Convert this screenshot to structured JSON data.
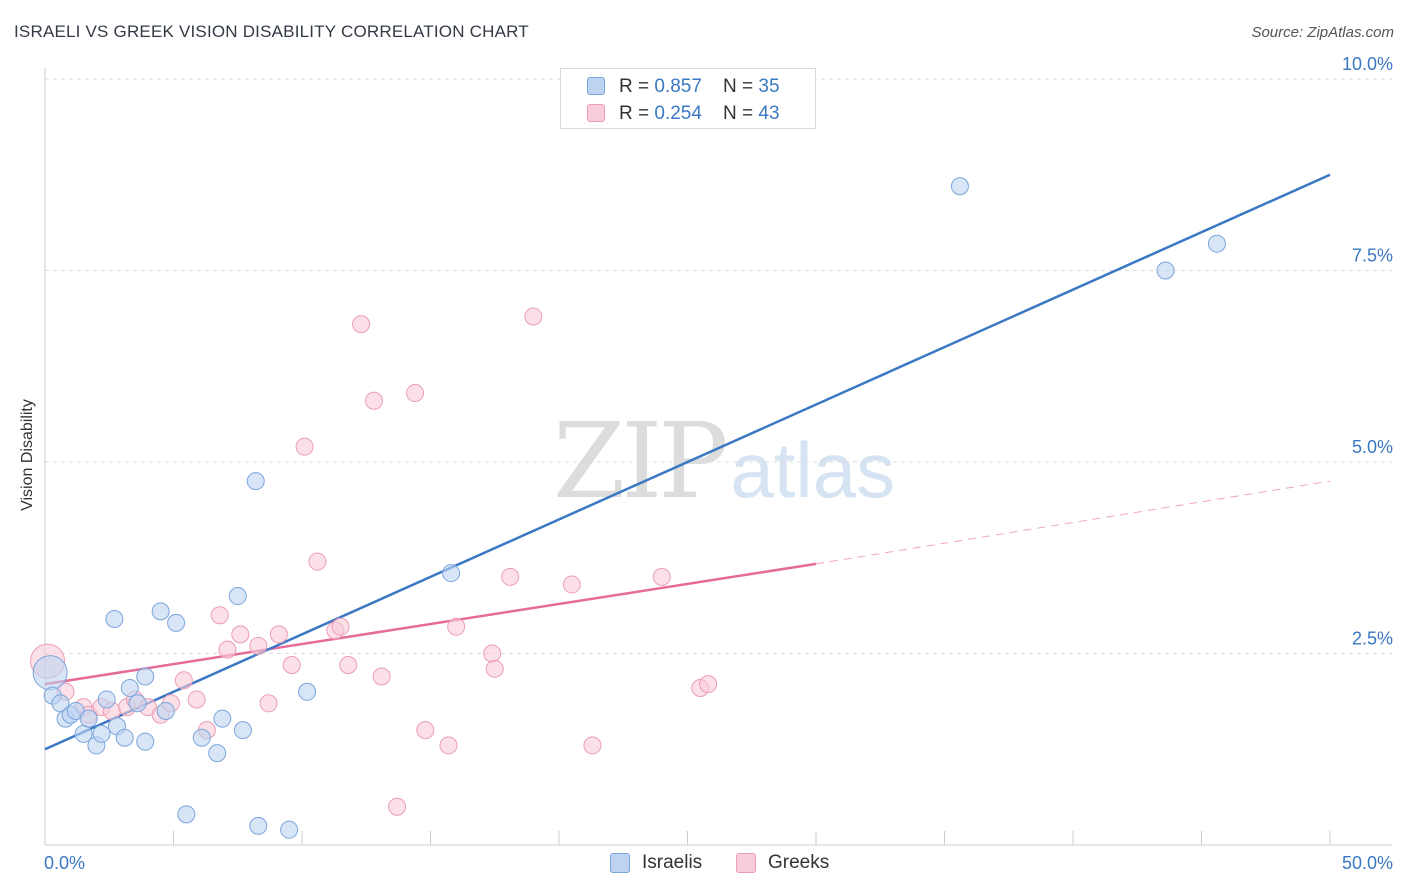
{
  "title": "ISRAELI VS GREEK VISION DISABILITY CORRELATION CHART",
  "source": "Source: ZipAtlas.com",
  "watermark": {
    "zip": "ZIP",
    "atlas": "atlas"
  },
  "colors": {
    "blue": "#3a78c4",
    "blue_fill": "#bcd4f2",
    "blue_stroke": "#7ba6dc",
    "pink": "#e66b97",
    "pink_fill": "#f9ccd9",
    "pink_stroke": "#ec9db6"
  },
  "legend_top": [
    {
      "r_label": "R = ",
      "r_value": "0.857",
      "n_label": "N = ",
      "n_value": "35"
    },
    {
      "r_label": "R = ",
      "r_value": "0.254",
      "n_label": "N = ",
      "n_value": "43"
    }
  ],
  "legend_bottom": [
    "Israelis",
    "Greeks"
  ],
  "chart_data": {
    "type": "scatter",
    "title": "ISRAELI VS GREEK VISION DISABILITY CORRELATION CHART",
    "xlabel": "",
    "ylabel": "Vision Disability",
    "xlim": [
      0,
      50
    ],
    "ylim": [
      0,
      10.25
    ],
    "x_tick_labels": [
      "0.0%",
      "50.0%"
    ],
    "y_ticks": [
      2.5,
      5.0,
      7.5,
      10.0
    ],
    "y_tick_labels": [
      "2.5%",
      "5.0%",
      "7.5%",
      "10.0%"
    ],
    "grid": "horizontal dashed",
    "legend_position": "top-center and bottom-center",
    "series": [
      {
        "name": "Israelis",
        "r": 0.857,
        "n": 35,
        "trend": {
          "x": [
            0,
            50
          ],
          "y": [
            1.25,
            8.75
          ]
        },
        "points": [
          {
            "x": 0.2,
            "y": 2.25,
            "big": true
          },
          {
            "x": 0.3,
            "y": 1.95
          },
          {
            "x": 0.6,
            "y": 1.85
          },
          {
            "x": 0.8,
            "y": 1.65
          },
          {
            "x": 1.0,
            "y": 1.7
          },
          {
            "x": 1.2,
            "y": 1.75
          },
          {
            "x": 1.5,
            "y": 1.45
          },
          {
            "x": 1.7,
            "y": 1.65
          },
          {
            "x": 2.0,
            "y": 1.3
          },
          {
            "x": 2.2,
            "y": 1.45
          },
          {
            "x": 2.4,
            "y": 1.9
          },
          {
            "x": 2.7,
            "y": 2.95
          },
          {
            "x": 2.8,
            "y": 1.55
          },
          {
            "x": 3.1,
            "y": 1.4
          },
          {
            "x": 3.3,
            "y": 2.05
          },
          {
            "x": 3.6,
            "y": 1.85
          },
          {
            "x": 3.9,
            "y": 1.35
          },
          {
            "x": 3.9,
            "y": 2.2
          },
          {
            "x": 4.5,
            "y": 3.05
          },
          {
            "x": 4.7,
            "y": 1.75
          },
          {
            "x": 5.1,
            "y": 2.9
          },
          {
            "x": 5.5,
            "y": 0.4
          },
          {
            "x": 6.1,
            "y": 1.4
          },
          {
            "x": 6.7,
            "y": 1.2
          },
          {
            "x": 6.9,
            "y": 1.65
          },
          {
            "x": 7.5,
            "y": 3.25
          },
          {
            "x": 7.7,
            "y": 1.5
          },
          {
            "x": 8.2,
            "y": 4.75
          },
          {
            "x": 8.3,
            "y": 0.25
          },
          {
            "x": 9.5,
            "y": 0.2
          },
          {
            "x": 10.2,
            "y": 2.0
          },
          {
            "x": 15.8,
            "y": 3.55
          },
          {
            "x": 35.6,
            "y": 8.6
          },
          {
            "x": 43.6,
            "y": 7.5
          },
          {
            "x": 45.6,
            "y": 7.85
          }
        ]
      },
      {
        "name": "Greeks",
        "r": 0.254,
        "n": 43,
        "trend": {
          "x": [
            0,
            30
          ],
          "y": [
            2.1,
            3.67
          ]
        },
        "trend_extension": {
          "x": [
            30,
            50
          ],
          "y": [
            3.67,
            4.75
          ]
        },
        "points": [
          {
            "x": 0.1,
            "y": 2.4,
            "big": true
          },
          {
            "x": 0.8,
            "y": 2.0
          },
          {
            "x": 1.5,
            "y": 1.8
          },
          {
            "x": 1.7,
            "y": 1.7
          },
          {
            "x": 2.2,
            "y": 1.8
          },
          {
            "x": 2.6,
            "y": 1.75
          },
          {
            "x": 3.2,
            "y": 1.8
          },
          {
            "x": 3.5,
            "y": 1.9
          },
          {
            "x": 4.0,
            "y": 1.8
          },
          {
            "x": 4.5,
            "y": 1.7
          },
          {
            "x": 4.9,
            "y": 1.85
          },
          {
            "x": 5.4,
            "y": 2.15
          },
          {
            "x": 5.9,
            "y": 1.9
          },
          {
            "x": 6.3,
            "y": 1.5
          },
          {
            "x": 6.8,
            "y": 3.0
          },
          {
            "x": 7.1,
            "y": 2.55
          },
          {
            "x": 7.6,
            "y": 2.75
          },
          {
            "x": 8.3,
            "y": 2.6
          },
          {
            "x": 8.7,
            "y": 1.85
          },
          {
            "x": 9.1,
            "y": 2.75
          },
          {
            "x": 9.6,
            "y": 2.35
          },
          {
            "x": 10.1,
            "y": 5.2
          },
          {
            "x": 10.6,
            "y": 3.7
          },
          {
            "x": 11.3,
            "y": 2.8
          },
          {
            "x": 11.5,
            "y": 2.85
          },
          {
            "x": 11.8,
            "y": 2.35
          },
          {
            "x": 12.3,
            "y": 6.8
          },
          {
            "x": 12.8,
            "y": 5.8
          },
          {
            "x": 13.1,
            "y": 2.2
          },
          {
            "x": 13.7,
            "y": 0.5
          },
          {
            "x": 14.4,
            "y": 5.9
          },
          {
            "x": 14.8,
            "y": 1.5
          },
          {
            "x": 15.7,
            "y": 1.3
          },
          {
            "x": 16.0,
            "y": 2.85
          },
          {
            "x": 17.4,
            "y": 2.5
          },
          {
            "x": 17.5,
            "y": 2.3
          },
          {
            "x": 18.1,
            "y": 3.5
          },
          {
            "x": 19.0,
            "y": 6.9
          },
          {
            "x": 20.5,
            "y": 3.4
          },
          {
            "x": 21.3,
            "y": 1.3
          },
          {
            "x": 24.0,
            "y": 3.5
          },
          {
            "x": 25.5,
            "y": 2.05
          },
          {
            "x": 25.8,
            "y": 2.1
          }
        ]
      }
    ]
  }
}
